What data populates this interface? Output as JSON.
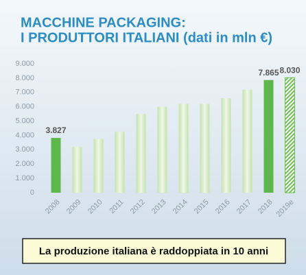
{
  "chart_data": {
    "type": "bar",
    "title": [
      "MACCHINE PACKAGING:",
      "I PRODUTTORI ITALIANI (dati in mln €)"
    ],
    "categories": [
      "2008",
      "2009",
      "2010",
      "2011",
      "2012",
      "2013",
      "2014",
      "2015",
      "2016",
      "2017",
      "2018",
      "2019e"
    ],
    "values": [
      3827,
      3200,
      3750,
      4250,
      5500,
      6000,
      6200,
      6200,
      6600,
      7200,
      7865,
      8030
    ],
    "value_labels": [
      "3.827",
      null,
      null,
      null,
      null,
      null,
      null,
      null,
      null,
      null,
      "7.865",
      "8.030"
    ],
    "colors": [
      "#5cb84a",
      "#d3ecc0",
      "#d3ecc0",
      "#d3ecc0",
      "#d3ecc0",
      "#d3ecc0",
      "#d3ecc0",
      "#d3ecc0",
      "#d3ecc0",
      "#d3ecc0",
      "#5cb84a",
      "#6cc04e"
    ],
    "hatch_last": true,
    "ylim": [
      0,
      9000
    ],
    "yticks": [
      0,
      {
        "value": 1000,
        "label": "1.000"
      },
      {
        "value": 2000,
        "label": "2.000"
      },
      {
        "value": 3000,
        "label": "3.000"
      },
      {
        "value": 4000,
        "label": "4.000"
      },
      {
        "value": 5000,
        "label": "5.000"
      },
      {
        "value": 6000,
        "label": "6.000"
      },
      {
        "value": 7000,
        "label": "7.000"
      },
      {
        "value": 8000,
        "label": "8.000"
      },
      {
        "value": 9000,
        "label": "9.000"
      }
    ],
    "grid": false,
    "annotation": "La produzione italiana è raddoppiata in 10 anni"
  }
}
